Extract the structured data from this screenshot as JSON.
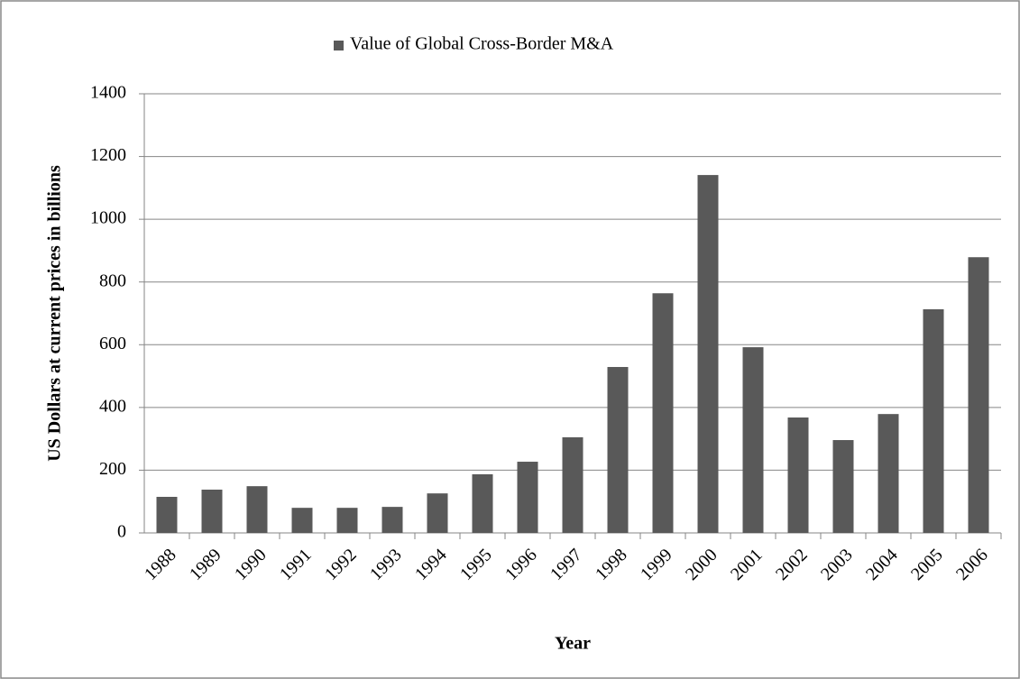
{
  "chart_data": {
    "type": "bar",
    "legend_label": "Value of Global Cross-Border M&A",
    "x_label": "Year",
    "y_label": "US Dollars at current prices in billions",
    "categories": [
      "1988",
      "1989",
      "1990",
      "1991",
      "1992",
      "1993",
      "1994",
      "1995",
      "1996",
      "1997",
      "1998",
      "1999",
      "2000",
      "2001",
      "2002",
      "2003",
      "2004",
      "2005",
      "2006"
    ],
    "values": [
      115,
      138,
      149,
      80,
      80,
      83,
      126,
      187,
      227,
      305,
      529,
      764,
      1141,
      592,
      368,
      296,
      379,
      713,
      879
    ],
    "color": "#595959",
    "ylim": [
      0,
      1400
    ],
    "yticks": [
      0,
      200,
      400,
      600,
      800,
      1000,
      1200,
      1400
    ],
    "grid": true,
    "legend": "top"
  }
}
